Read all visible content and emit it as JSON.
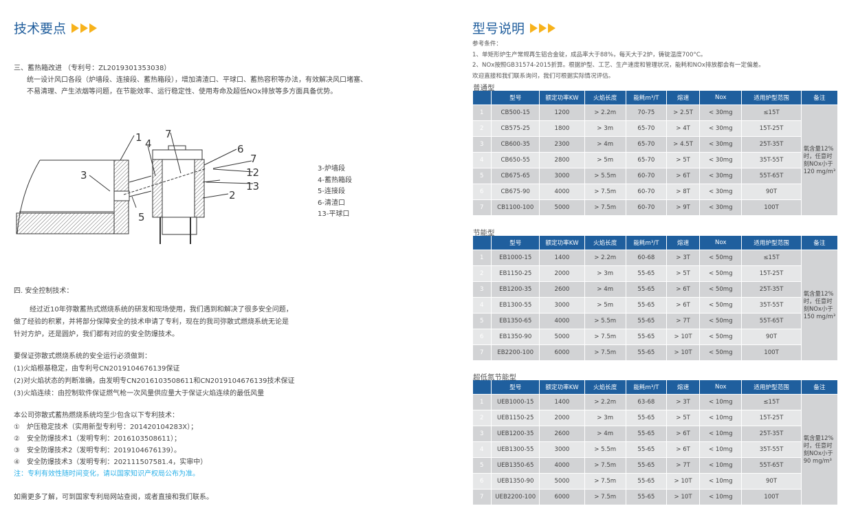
{
  "left": {
    "title": "技术要点",
    "section3": {
      "heading": "三、蓄热箱改进 （专利号：ZL2019301353038）",
      "line1": "统一设计风口各段（炉墙段、连接段、蓄热箱段），增加清渣口、平球口、蓄热容积等办法，有效解决风口堵塞、",
      "line2": "不易清理、产生浓烟等问题，在节能效率、运行稳定性、使用寿命及超低NOx排放等多方面具备优势。"
    },
    "diagram": {
      "callouts": [
        "1",
        "3",
        "4",
        "5",
        "7",
        "6",
        "7",
        "12",
        "13",
        "2"
      ],
      "legend": [
        "3-炉墙段",
        "4-蓄热箱段",
        "5-连接段",
        "6-清渣口",
        "13-平球口"
      ]
    },
    "section4": {
      "heading": "四.  安全控制技术：",
      "para": [
        "经过近10年弥散蓄热式燃烧系统的研发和现场使用，我们遇到和解决了很多安全问题，",
        "做了经验的积累，并将部分保障安全的技术申请了专利，现在的我司弥散式燃烧系统无论是",
        "针对方炉，还是圆炉，我们都有对应的安全防爆技术。"
      ],
      "requirements": [
        "要保证弥散式燃烧系统的安全运行必须做到：",
        "(1)火焰根基稳定，由专利号CN2019104676139保证",
        "(2)对火焰状态的判断准确，由发明专CN2016103508611和CN2019104676139技术保证",
        "(3)火焰连续：由控制软件保证燃气枪一次风量供应量大于保证火焰连续的最低风量"
      ],
      "patents": [
        "本公司弥散式蓄热燃烧系统均至少包含以下专利技术：",
        "①　炉压稳定技术（实用新型专利号：201420104283X）；",
        "②　安全防爆技术1（发明专利：2016103508611）；",
        "③　安全防爆技术2（发明专利：2019104676139）。",
        "④　安全防爆技术3（发明专利：202111507581.4，实审中）"
      ],
      "note": "注：专利有效性随时间变化，请以国家知识产权局公布为准。",
      "footer": "如需更多了解，可到国家专利局网站查阅，或者直接和我们联系。"
    }
  },
  "right": {
    "title": "型号说明",
    "conditions": [
      "参考条件：",
      "1、单矩形炉生产常规再生铝合金锭，成品率大于88%，每天大于2炉，铸锭温度700°C。",
      "2、NOx按照GB31574-2015折算。根据炉型、工艺、生产速度和管理状况，能耗和NOx排放都会有一定偏差。",
      "欢迎直接和我们联系询问，我们可根据实际情况评估。"
    ],
    "headers": [
      "",
      "型号",
      "额定功率KW",
      "火焰长度",
      "能耗m³/T",
      "熔速",
      "Nox",
      "适用炉型范围",
      "备注"
    ],
    "tables": [
      {
        "name": "普通型",
        "remark": "氧含量12%时，任意时刻NOx小于120 mg/m³",
        "rows": [
          [
            "1",
            "CB500-15",
            "1200",
            "> 2.2m",
            "70-75",
            "> 2.5T",
            "< 30mg",
            "≤15T"
          ],
          [
            "2",
            "CB575-25",
            "1800",
            "> 3m",
            "65-70",
            "> 4T",
            "< 30mg",
            "15T-25T"
          ],
          [
            "3",
            "CB600-35",
            "2300",
            "> 4m",
            "65-70",
            "> 4.5T",
            "< 30mg",
            "25T-35T"
          ],
          [
            "4",
            "CB650-55",
            "2800",
            "> 5m",
            "65-70",
            "> 5T",
            "< 30mg",
            "35T-55T"
          ],
          [
            "5",
            "CB675-65",
            "3000",
            "> 5.5m",
            "60-70",
            "> 6T",
            "< 30mg",
            "55T-65T"
          ],
          [
            "6",
            "CB675-90",
            "4000",
            "> 7.5m",
            "60-70",
            "> 8T",
            "< 30mg",
            "90T"
          ],
          [
            "7",
            "CB1100-100",
            "5000",
            "> 7.5m",
            "60-70",
            "> 9T",
            "< 30mg",
            "100T"
          ]
        ]
      },
      {
        "name": "节能型",
        "remark": "氧含量12%时，任意时刻NOx小于150 mg/m³",
        "rows": [
          [
            "1",
            "EB1000-15",
            "1400",
            "> 2.2m",
            "60-68",
            "> 3T",
            "< 50mg",
            "≤15T"
          ],
          [
            "2",
            "EB1150-25",
            "2000",
            "> 3m",
            "55-65",
            "> 5T",
            "< 50mg",
            "15T-25T"
          ],
          [
            "3",
            "EB1200-35",
            "2600",
            "> 4m",
            "55-65",
            "> 6T",
            "< 50mg",
            "25T-35T"
          ],
          [
            "4",
            "EB1300-55",
            "3000",
            "> 5m",
            "55-65",
            "> 6T",
            "< 50mg",
            "35T-55T"
          ],
          [
            "5",
            "EB1350-65",
            "4000",
            "> 5.5m",
            "55-65",
            "> 7T",
            "< 50mg",
            "55T-65T"
          ],
          [
            "6",
            "EB1350-90",
            "5000",
            "> 7.5m",
            "55-65",
            "> 10T",
            "< 50mg",
            "90T"
          ],
          [
            "7",
            "EB2200-100",
            "6000",
            "> 7.5m",
            "55-65",
            "> 10T",
            "< 50mg",
            "100T"
          ]
        ]
      },
      {
        "name": "超低氮节能型",
        "remark": "氧含量12%时，任意时刻NOx小于90 mg/m³",
        "rows": [
          [
            "1",
            "UEB1000-15",
            "1400",
            "> 2.2m",
            "63-68",
            "> 3T",
            "< 10mg",
            "≤15T"
          ],
          [
            "2",
            "UEB1150-25",
            "2000",
            "> 3m",
            "55-65",
            "> 5T",
            "< 10mg",
            "15T-25T"
          ],
          [
            "3",
            "UEB1200-35",
            "2600",
            "> 4m",
            "55-65",
            "> 6T",
            "< 10mg",
            "25T-35T"
          ],
          [
            "4",
            "UEB1300-55",
            "3000",
            "> 5.5m",
            "55-65",
            "> 6T",
            "< 10mg",
            "35T-55T"
          ],
          [
            "5",
            "UEB1350-65",
            "4000",
            "> 7.5m",
            "55-65",
            "> 7T",
            "< 10mg",
            "55T-65T"
          ],
          [
            "6",
            "UEB1350-90",
            "5000",
            "> 7.5m",
            "55-65",
            "> 10T",
            "< 10mg",
            "90T"
          ],
          [
            "7",
            "UEB2200-100",
            "6000",
            "> 7.5m",
            "55-65",
            "> 10T",
            "< 10mg",
            "100T"
          ]
        ]
      }
    ]
  },
  "colors": {
    "title": "#1f5d9c",
    "arrow": "#f7b21b",
    "header": "#1f5f9e",
    "note": "#2ab0e8",
    "row_dark": "#d2d3d5",
    "row_light": "#e6e7e8"
  }
}
